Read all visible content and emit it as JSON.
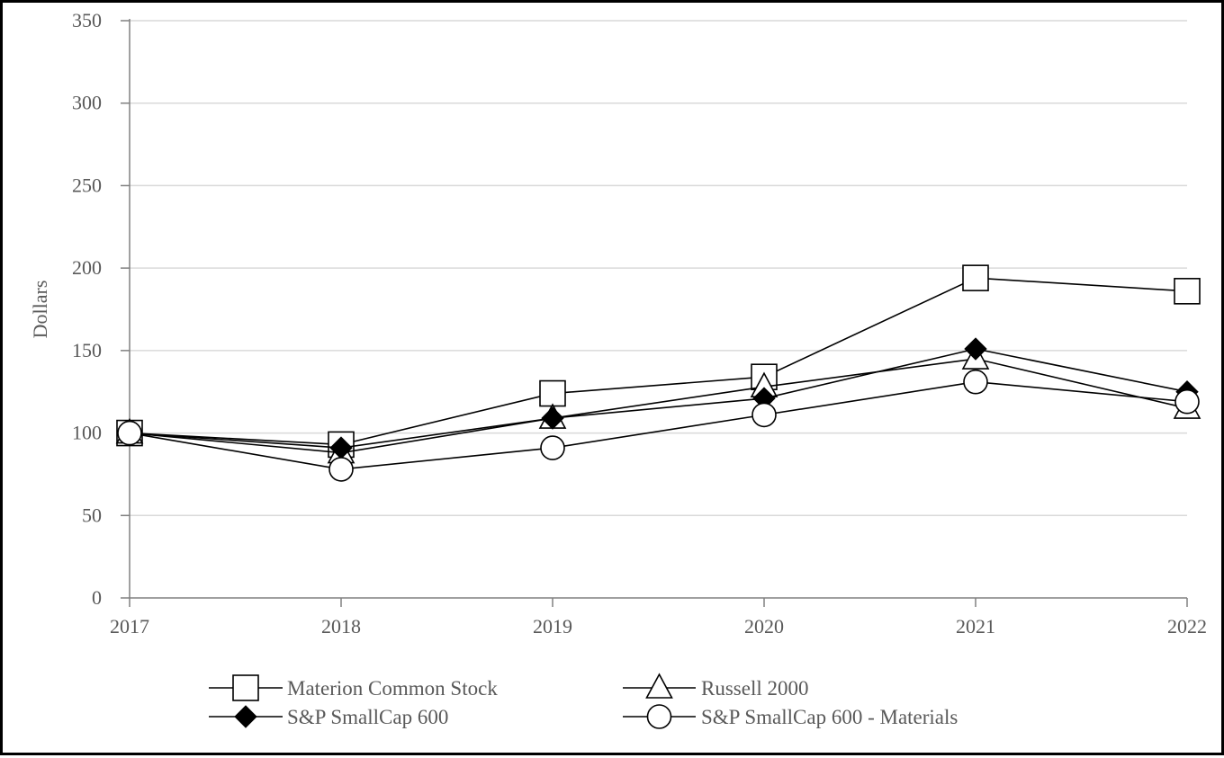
{
  "chart_data": {
    "type": "line",
    "title": "",
    "xlabel": "",
    "ylabel": "Dollars",
    "categories": [
      "2017",
      "2018",
      "2019",
      "2020",
      "2021",
      "2022"
    ],
    "ylim": [
      0,
      350
    ],
    "yticks": [
      0,
      50,
      100,
      150,
      200,
      250,
      300,
      350
    ],
    "grid": "horizontal",
    "legend_position": "bottom",
    "series": [
      {
        "name": "Materion Common Stock",
        "marker": "open-square",
        "values": [
          100,
          93,
          124,
          134,
          194,
          186
        ]
      },
      {
        "name": "Russell 2000",
        "marker": "open-triangle",
        "values": [
          100,
          88,
          109,
          128,
          145,
          115
        ]
      },
      {
        "name": "S&P SmallCap 600",
        "marker": "filled-diamond",
        "values": [
          100,
          91,
          109,
          121,
          151,
          125
        ]
      },
      {
        "name": "S&P SmallCap 600 - Materials",
        "marker": "open-circle",
        "values": [
          100,
          78,
          91,
          111,
          131,
          119
        ]
      }
    ],
    "colors": {
      "line": "#000000",
      "grid": "#d9d9d9",
      "axis": "#808080",
      "text": "#595959"
    }
  }
}
